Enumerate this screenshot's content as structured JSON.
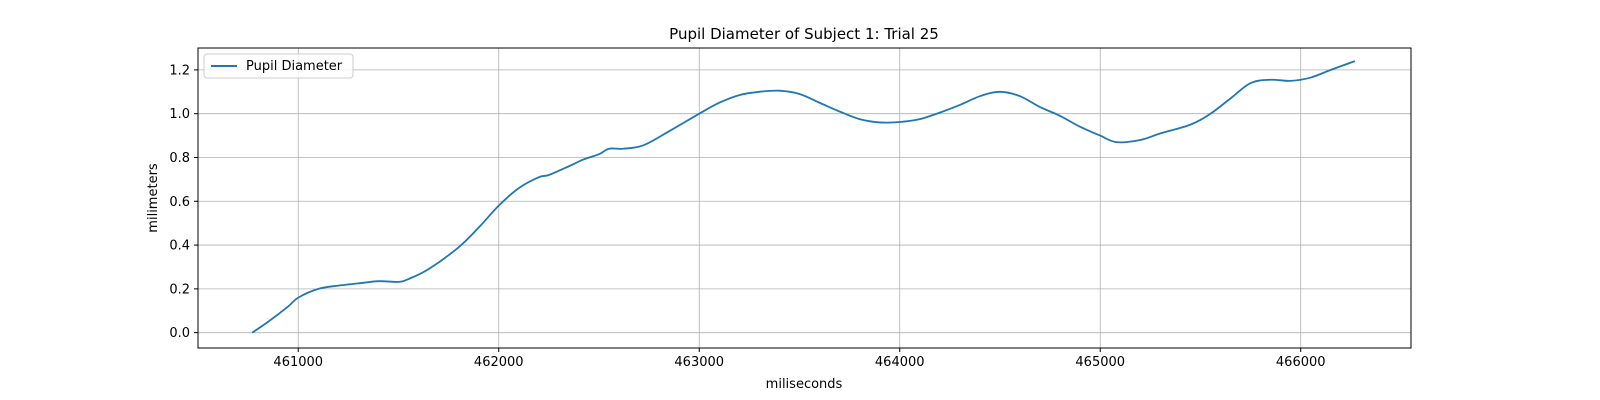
{
  "chart_data": {
    "type": "line",
    "title": "Pupil Diameter of Subject 1: Trial 25",
    "xlabel": "miliseconds",
    "ylabel": "milimeters",
    "xlim": [
      460500,
      466550
    ],
    "ylim": [
      -0.07,
      1.3
    ],
    "xticks": [
      461000,
      462000,
      463000,
      464000,
      465000,
      466000
    ],
    "yticks": [
      0.0,
      0.2,
      0.4,
      0.6,
      0.8,
      1.0,
      1.2
    ],
    "xtick_labels": [
      "461000",
      "462000",
      "463000",
      "464000",
      "465000",
      "466000"
    ],
    "ytick_labels": [
      "0.0",
      "0.2",
      "0.4",
      "0.6",
      "0.8",
      "1.0",
      "1.2"
    ],
    "grid": true,
    "legend_position": "upper-left",
    "color": "#1f77b4",
    "series": [
      {
        "name": "Pupil Diameter",
        "x": [
          460770,
          460850,
          460950,
          461000,
          461100,
          461200,
          461300,
          461400,
          461500,
          461550,
          461650,
          461800,
          461900,
          462000,
          462100,
          462200,
          462250,
          462350,
          462420,
          462500,
          462550,
          462620,
          462720,
          462850,
          463000,
          463100,
          463200,
          463300,
          463400,
          463500,
          463600,
          463700,
          463800,
          463900,
          464000,
          464100,
          464200,
          464300,
          464400,
          464500,
          464600,
          464700,
          464800,
          464900,
          465000,
          465080,
          465200,
          465300,
          465450,
          465550,
          465650,
          465750,
          465850,
          465950,
          466050,
          466150,
          466270
        ],
        "y": [
          0.0,
          0.05,
          0.12,
          0.16,
          0.2,
          0.215,
          0.225,
          0.235,
          0.232,
          0.245,
          0.29,
          0.39,
          0.48,
          0.58,
          0.66,
          0.71,
          0.72,
          0.76,
          0.79,
          0.815,
          0.84,
          0.84,
          0.855,
          0.92,
          1.0,
          1.05,
          1.085,
          1.1,
          1.105,
          1.09,
          1.05,
          1.01,
          0.975,
          0.96,
          0.962,
          0.975,
          1.005,
          1.04,
          1.08,
          1.1,
          1.08,
          1.03,
          0.99,
          0.94,
          0.9,
          0.87,
          0.88,
          0.91,
          0.95,
          1.0,
          1.07,
          1.14,
          1.155,
          1.15,
          1.165,
          1.2,
          1.24
        ]
      }
    ]
  }
}
